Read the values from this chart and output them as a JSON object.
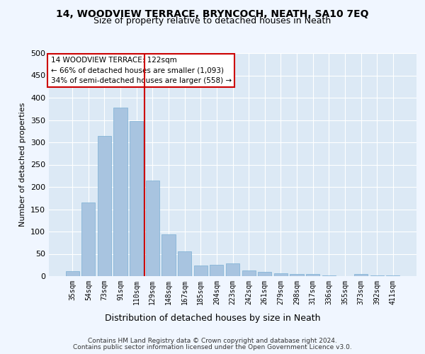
{
  "title1": "14, WOODVIEW TERRACE, BRYNCOCH, NEATH, SA10 7EQ",
  "title2": "Size of property relative to detached houses in Neath",
  "xlabel": "Distribution of detached houses by size in Neath",
  "ylabel": "Number of detached properties",
  "categories": [
    "35sqm",
    "54sqm",
    "73sqm",
    "91sqm",
    "110sqm",
    "129sqm",
    "148sqm",
    "167sqm",
    "185sqm",
    "204sqm",
    "223sqm",
    "242sqm",
    "261sqm",
    "279sqm",
    "298sqm",
    "317sqm",
    "336sqm",
    "355sqm",
    "373sqm",
    "392sqm",
    "411sqm"
  ],
  "values": [
    11,
    165,
    315,
    378,
    347,
    215,
    93,
    55,
    24,
    26,
    29,
    13,
    10,
    7,
    5,
    4,
    1,
    0,
    4,
    1,
    1
  ],
  "bar_color": "#a8c4e0",
  "bar_edge_color": "#7aafd4",
  "vline_x": 4.5,
  "vline_color": "#cc0000",
  "annotation_text": "14 WOODVIEW TERRACE: 122sqm\n← 66% of detached houses are smaller (1,093)\n34% of semi-detached houses are larger (558) →",
  "annotation_box_color": "#ffffff",
  "annotation_box_edge": "#cc0000",
  "ylim": [
    0,
    500
  ],
  "yticks": [
    0,
    50,
    100,
    150,
    200,
    250,
    300,
    350,
    400,
    450,
    500
  ],
  "background_color": "#dce9f5",
  "grid_color": "#ffffff",
  "fig_facecolor": "#f0f6ff",
  "footer1": "Contains HM Land Registry data © Crown copyright and database right 2024.",
  "footer2": "Contains public sector information licensed under the Open Government Licence v3.0."
}
